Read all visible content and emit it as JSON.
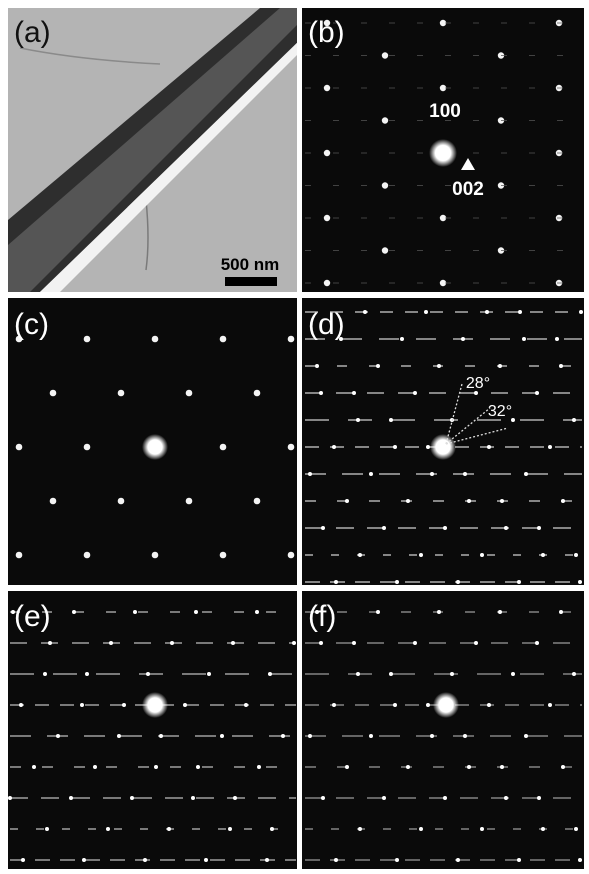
{
  "panels": [
    {
      "label": "(a)",
      "scale_bar": "500 nm"
    },
    {
      "label": "(b)",
      "spot_labels": [
        "100",
        "002"
      ]
    },
    {
      "label": "(c)"
    },
    {
      "label": "(d)",
      "angles": [
        "28°",
        "32°"
      ]
    },
    {
      "label": "(e)"
    },
    {
      "label": "(f)"
    }
  ]
}
